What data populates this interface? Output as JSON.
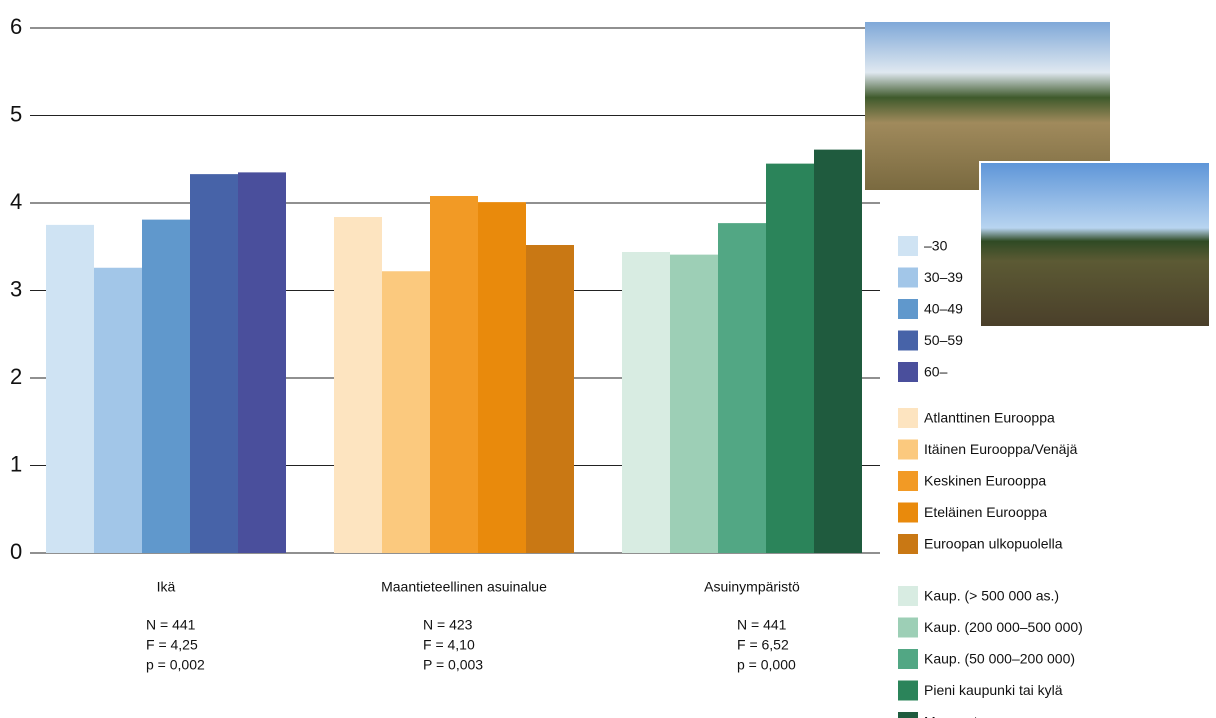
{
  "chart_data": {
    "type": "bar",
    "ylim": [
      0,
      6
    ],
    "yticks": [
      0,
      1,
      2,
      3,
      4,
      5,
      6
    ],
    "grid": true,
    "groups": [
      {
        "category": "Ikä",
        "notes": [
          "N = 441",
          "F = 4,25",
          "p = 0,002"
        ],
        "series": [
          {
            "name": "–30",
            "color": "#cfe3f3",
            "value": 3.75
          },
          {
            "name": "30–39",
            "color": "#a2c6e8",
            "value": 3.26
          },
          {
            "name": "40–49",
            "color": "#6098cc",
            "value": 3.81
          },
          {
            "name": "50–59",
            "color": "#4763a8",
            "value": 4.33
          },
          {
            "name": "60–",
            "color": "#4a4f9c",
            "value": 4.35
          }
        ]
      },
      {
        "category": "Maantieteellinen asuinalue",
        "notes": [
          "N = 423",
          "F = 4,10",
          "P = 0,003"
        ],
        "series": [
          {
            "name": "Atlanttinen Eurooppa",
            "color": "#fde4c0",
            "value": 3.84
          },
          {
            "name": "Itäinen Eurooppa/Venäjä",
            "color": "#fbc97e",
            "value": 3.22
          },
          {
            "name": "Keskinen Eurooppa",
            "color": "#f29a25",
            "value": 4.08
          },
          {
            "name": "Eteläinen Eurooppa",
            "color": "#e98a0c",
            "value": 4.01
          },
          {
            "name": "Euroopan ulkopuolella",
            "color": "#c97814",
            "value": 3.52
          }
        ]
      },
      {
        "category": "Asuinympäristö",
        "notes": [
          "N = 441",
          "F = 6,52",
          "p = 0,000"
        ],
        "series": [
          {
            "name": "Kaup. (> 500 000 as.)",
            "color": "#d8ece2",
            "value": 3.44
          },
          {
            "name": "Kaup. (200 000–500 000)",
            "color": "#9dcfb6",
            "value": 3.41
          },
          {
            "name": "Kaup. (50 000–200 000)",
            "color": "#52a784",
            "value": 3.77
          },
          {
            "name": "Pieni kaupunki tai kylä",
            "color": "#2b845a",
            "value": 4.45
          },
          {
            "name": "Maaseutu",
            "color": "#1f5b3e",
            "value": 4.61
          }
        ]
      }
    ]
  }
}
